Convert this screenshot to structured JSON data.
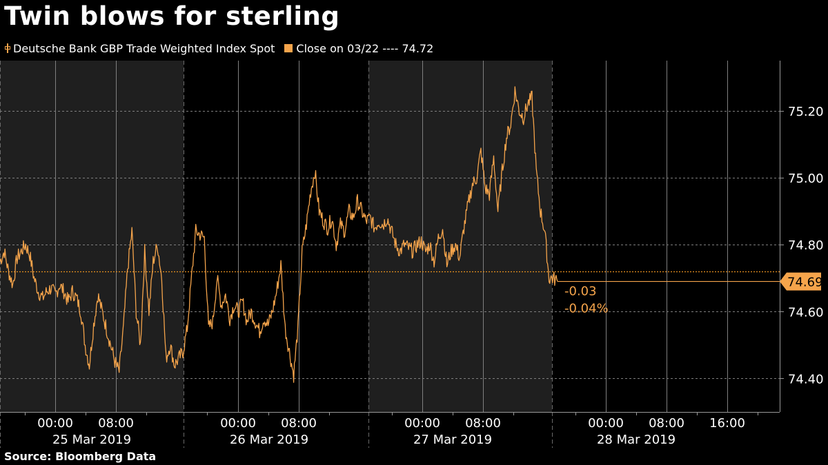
{
  "title": "Twin blows for sterling",
  "legend": {
    "series_label": "Deutsche Bank GBP Trade Weighted Index Spot",
    "close_label": "Close on 03/22 ---- 74.72"
  },
  "source": "Source: Bloomberg Data",
  "colors": {
    "series": "#f5a44b",
    "close_line": "#e8901f",
    "shade": "#1f1f1f",
    "grid": "#808080",
    "text": "#ffffff"
  },
  "chart_data": {
    "type": "line",
    "title": "Twin blows for sterling",
    "ylim": [
      74.3,
      75.35
    ],
    "y_ticks": [
      "74.40",
      "74.60",
      "74.80",
      "75.00",
      "75.20"
    ],
    "x_time_ticks": [
      "00:00",
      "08:00",
      "00:00",
      "08:00",
      "00:00",
      "08:00",
      "00:00",
      "08:00",
      "16:00"
    ],
    "day_labels": [
      "25 Mar 2019",
      "26 Mar 2019",
      "27 Mar 2019",
      "28 Mar 2019"
    ],
    "close_reference": {
      "label": "Close on 03/22",
      "value": 74.72
    },
    "last_value": "74.69",
    "change": "-0.03",
    "change_pct": "-0.04%",
    "series": [
      {
        "name": "Deutsche Bank GBP Trade Weighted Index Spot",
        "values": [
          74.75,
          74.78,
          74.72,
          74.68,
          74.76,
          74.78,
          74.8,
          74.77,
          74.7,
          74.66,
          74.64,
          74.66,
          74.67,
          74.65,
          74.68,
          74.66,
          74.63,
          74.66,
          74.64,
          74.6,
          74.5,
          74.44,
          74.56,
          74.65,
          74.6,
          74.55,
          74.5,
          74.45,
          74.42,
          74.55,
          74.73,
          74.84,
          74.6,
          74.5,
          74.78,
          74.6,
          74.75,
          74.8,
          74.7,
          74.46,
          74.5,
          74.44,
          74.46,
          74.48,
          74.55,
          74.7,
          74.84,
          74.83,
          74.82,
          74.55,
          74.57,
          74.7,
          74.62,
          74.65,
          74.58,
          74.62,
          74.6,
          74.63,
          74.57,
          74.6,
          74.57,
          74.54,
          74.58,
          74.56,
          74.6,
          74.66,
          74.74,
          74.55,
          74.48,
          74.41,
          74.55,
          74.78,
          74.86,
          74.96,
          75.02,
          74.9,
          74.87,
          74.85,
          74.88,
          74.8,
          74.86,
          74.84,
          74.9,
          74.88,
          74.93,
          74.9,
          74.87,
          74.88,
          74.85,
          74.87,
          74.86,
          74.88,
          74.84,
          74.8,
          74.78,
          74.8,
          74.79,
          74.78,
          74.8,
          74.81,
          74.78,
          74.8,
          74.75,
          74.82,
          74.85,
          74.74,
          74.78,
          74.8,
          74.76,
          74.85,
          74.92,
          74.98,
          75.0,
          75.08,
          74.97,
          74.95,
          75.06,
          74.9,
          75.02,
          75.12,
          75.16,
          75.26,
          75.2,
          75.18,
          75.22,
          75.24,
          75.02,
          74.9,
          74.84,
          74.7,
          74.7,
          74.69
        ]
      }
    ]
  }
}
